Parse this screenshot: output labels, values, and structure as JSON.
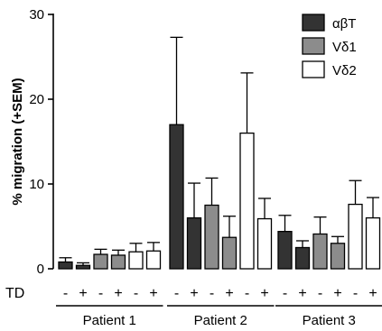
{
  "chart_data": {
    "type": "bar",
    "ylabel": "% migration (+SEM)",
    "ylim": [
      0,
      30
    ],
    "yticks": [
      0,
      10,
      20,
      30
    ],
    "grid": false,
    "legend_position": "top-right",
    "row_label": "TD",
    "condition_labels": [
      "-",
      "+"
    ],
    "groups": [
      "Patient 1",
      "Patient 2",
      "Patient 3"
    ],
    "series": [
      {
        "name": "αβT",
        "color": "#333333",
        "values": [
          [
            0.8,
            0.4
          ],
          [
            17.0,
            6.0
          ],
          [
            4.4,
            2.5
          ]
        ],
        "errors": [
          [
            0.5,
            0.3
          ],
          [
            10.3,
            4.1
          ],
          [
            1.9,
            0.8
          ]
        ]
      },
      {
        "name": "Vδ1",
        "color": "#8c8c8c",
        "values": [
          [
            1.7,
            1.6
          ],
          [
            7.5,
            3.7
          ],
          [
            4.1,
            3.0
          ]
        ],
        "errors": [
          [
            0.6,
            0.6
          ],
          [
            3.2,
            2.5
          ],
          [
            2.0,
            0.8
          ]
        ]
      },
      {
        "name": "Vδ2",
        "color": "#ffffff",
        "values": [
          [
            2.0,
            2.1
          ],
          [
            16.0,
            5.9
          ],
          [
            7.6,
            6.0
          ]
        ],
        "errors": [
          [
            1.0,
            1.0
          ],
          [
            7.1,
            2.4
          ],
          [
            2.8,
            2.4
          ]
        ]
      }
    ]
  }
}
